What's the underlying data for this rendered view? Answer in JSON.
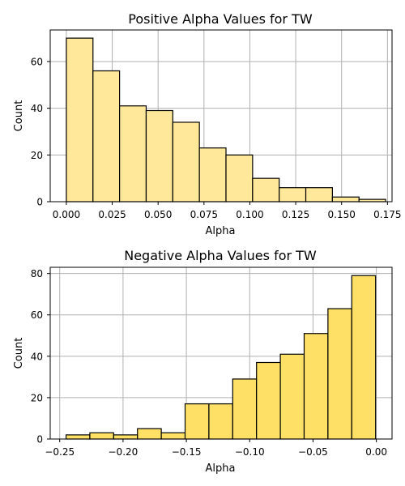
{
  "chart_data": [
    {
      "type": "bar",
      "title": "Positive Alpha Values for TW",
      "xlabel": "Alpha",
      "ylabel": "Count",
      "grid": true,
      "bar_color": "#ffe899",
      "edge_color": "#000000",
      "xlim": [
        -0.0088,
        0.1775
      ],
      "ylim": [
        0,
        73.5
      ],
      "x_ticks": [
        0.0,
        0.025,
        0.05,
        0.075,
        0.1,
        0.125,
        0.15,
        0.175
      ],
      "x_tick_labels": [
        "0.000",
        "0.025",
        "0.050",
        "0.075",
        "0.100",
        "0.125",
        "0.150",
        "0.175"
      ],
      "y_ticks": [
        0,
        20,
        40,
        60
      ],
      "y_tick_labels": [
        "0",
        "20",
        "40",
        "60"
      ],
      "bins": [
        {
          "x0": 0.0,
          "x1": 0.0145,
          "count": 70
        },
        {
          "x0": 0.0145,
          "x1": 0.029,
          "count": 56
        },
        {
          "x0": 0.029,
          "x1": 0.0435,
          "count": 41
        },
        {
          "x0": 0.0435,
          "x1": 0.058,
          "count": 39
        },
        {
          "x0": 0.058,
          "x1": 0.0725,
          "count": 34
        },
        {
          "x0": 0.0725,
          "x1": 0.087,
          "count": 23
        },
        {
          "x0": 0.087,
          "x1": 0.1015,
          "count": 20
        },
        {
          "x0": 0.1015,
          "x1": 0.116,
          "count": 10
        },
        {
          "x0": 0.116,
          "x1": 0.1305,
          "count": 6
        },
        {
          "x0": 0.1305,
          "x1": 0.145,
          "count": 6
        },
        {
          "x0": 0.145,
          "x1": 0.1595,
          "count": 2
        },
        {
          "x0": 0.1595,
          "x1": 0.174,
          "count": 1
        }
      ]
    },
    {
      "type": "bar",
      "title": "Negative Alpha Values for TW",
      "xlabel": "Alpha",
      "ylabel": "Count",
      "grid": true,
      "bar_color": "#ffe066",
      "edge_color": "#000000",
      "xlim": [
        -0.2575,
        0.0124
      ],
      "ylim": [
        0,
        83
      ],
      "x_ticks": [
        -0.25,
        -0.2,
        -0.15,
        -0.1,
        -0.05,
        0.0
      ],
      "x_tick_labels": [
        "−0.25",
        "−0.20",
        "−0.15",
        "−0.10",
        "−0.05",
        "0.00"
      ],
      "y_ticks": [
        0,
        20,
        40,
        60,
        80
      ],
      "y_tick_labels": [
        "0",
        "20",
        "40",
        "60",
        "80"
      ],
      "bins": [
        {
          "x0": -0.245,
          "x1": -0.2262,
          "count": 2
        },
        {
          "x0": -0.2262,
          "x1": -0.2074,
          "count": 3
        },
        {
          "x0": -0.2074,
          "x1": -0.1886,
          "count": 2
        },
        {
          "x0": -0.1886,
          "x1": -0.1698,
          "count": 5
        },
        {
          "x0": -0.1698,
          "x1": -0.151,
          "count": 3
        },
        {
          "x0": -0.151,
          "x1": -0.1322,
          "count": 17
        },
        {
          "x0": -0.1322,
          "x1": -0.1134,
          "count": 17
        },
        {
          "x0": -0.1134,
          "x1": -0.0946,
          "count": 29
        },
        {
          "x0": -0.0946,
          "x1": -0.0758,
          "count": 37
        },
        {
          "x0": -0.0758,
          "x1": -0.057,
          "count": 41
        },
        {
          "x0": -0.057,
          "x1": -0.0382,
          "count": 51
        },
        {
          "x0": -0.0382,
          "x1": -0.0194,
          "count": 63
        },
        {
          "x0": -0.0194,
          "x1": -0.0006,
          "count": 79
        }
      ]
    }
  ]
}
